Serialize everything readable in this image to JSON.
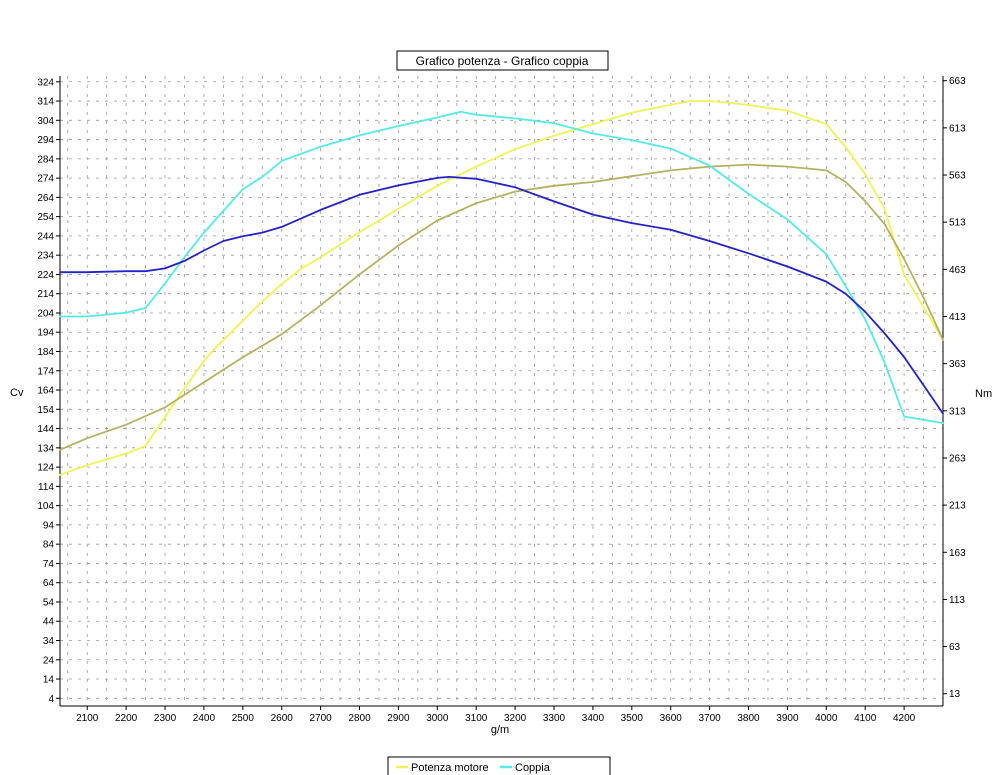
{
  "chart_data": {
    "type": "line",
    "title": "Grafico potenza - Grafico coppia",
    "xlabel": "g/m",
    "ylabel_left": "Cv",
    "ylabel_right": "Nm",
    "xlim": [
      2030,
      4300
    ],
    "ylim_left": [
      0,
      327
    ],
    "ylim_right": [
      0,
      668
    ],
    "x_ticks": [
      2100,
      2200,
      2300,
      2400,
      2500,
      2600,
      2700,
      2800,
      2900,
      3000,
      3100,
      3200,
      3300,
      3400,
      3500,
      3600,
      3700,
      3800,
      3900,
      4000,
      4100,
      4200
    ],
    "y_left_ticks": [
      4,
      14,
      24,
      34,
      44,
      54,
      64,
      74,
      84,
      94,
      104,
      114,
      124,
      134,
      144,
      154,
      164,
      174,
      184,
      194,
      204,
      214,
      224,
      234,
      244,
      254,
      264,
      274,
      284,
      294,
      304,
      314,
      324
    ],
    "y_right_ticks": [
      13,
      63,
      113,
      163,
      213,
      263,
      313,
      363,
      413,
      463,
      513,
      563,
      613,
      663
    ],
    "grid": true,
    "legend_position": "bottom-center",
    "legend": [
      "Potenza motore",
      "Coppia"
    ],
    "series": [
      {
        "name": "Potenza motore",
        "axis": "left",
        "color": "#f2f255",
        "x": [
          2030,
          2100,
          2200,
          2250,
          2300,
          2350,
          2400,
          2430,
          2500,
          2550,
          2600,
          2650,
          2700,
          2800,
          2900,
          3000,
          3100,
          3200,
          3300,
          3400,
          3500,
          3600,
          3650,
          3700,
          3800,
          3900,
          4000,
          4050,
          4100,
          4150,
          4200,
          4300
        ],
        "y": [
          120,
          125,
          131,
          135,
          150,
          165,
          179,
          186,
          200,
          210,
          219,
          227,
          233,
          246,
          258,
          270,
          280,
          289,
          296,
          302,
          308,
          312,
          314,
          314,
          312,
          309,
          302,
          290,
          276,
          258,
          224,
          190
        ]
      },
      {
        "name": "",
        "axis": "left",
        "color": "#b8b060",
        "x": [
          2030,
          2100,
          2200,
          2300,
          2400,
          2500,
          2600,
          2700,
          2800,
          2900,
          3000,
          3100,
          3200,
          3300,
          3400,
          3500,
          3600,
          3700,
          3800,
          3900,
          4000,
          4050,
          4100,
          4150,
          4200,
          4250,
          4300
        ],
        "y": [
          133,
          139,
          146,
          155,
          168,
          181,
          193,
          208,
          224,
          239,
          252,
          261,
          267,
          270,
          272,
          275,
          278,
          280,
          281,
          280,
          278,
          272,
          262,
          250,
          232,
          212,
          190
        ]
      },
      {
        "name": "Coppia",
        "axis": "right",
        "color": "#55eaea",
        "x": [
          2030,
          2100,
          2200,
          2250,
          2300,
          2350,
          2400,
          2450,
          2500,
          2550,
          2600,
          2700,
          2800,
          2900,
          3000,
          3060,
          3100,
          3200,
          3300,
          3400,
          3500,
          3600,
          3700,
          3800,
          3900,
          4000,
          4050,
          4100,
          4150,
          4200,
          4300
        ],
        "y": [
          413,
          413,
          417,
          422,
          448,
          476,
          502,
          525,
          548,
          561,
          578,
          593,
          605,
          615,
          624,
          630,
          627,
          623,
          618,
          607,
          600,
          591,
          573,
          543,
          516,
          479,
          445,
          410,
          364,
          307,
          300
        ]
      },
      {
        "name": "",
        "axis": "right",
        "color": "#2222cc",
        "x": [
          2030,
          2100,
          2200,
          2250,
          2300,
          2350,
          2400,
          2450,
          2500,
          2550,
          2600,
          2700,
          2800,
          2900,
          3000,
          3030,
          3100,
          3200,
          3300,
          3400,
          3500,
          3600,
          3700,
          3800,
          3900,
          4000,
          4050,
          4100,
          4150,
          4200,
          4250,
          4300
        ],
        "y": [
          460,
          460,
          461,
          461,
          464,
          472,
          483,
          493,
          498,
          502,
          508,
          526,
          542,
          552,
          560,
          561,
          559,
          550,
          535,
          521,
          512,
          505,
          493,
          480,
          466,
          450,
          437,
          418,
          395,
          370,
          340,
          310
        ]
      }
    ]
  }
}
